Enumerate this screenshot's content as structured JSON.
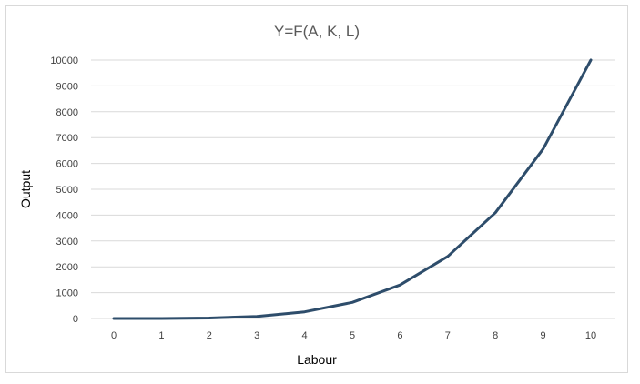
{
  "chart_data": {
    "type": "line",
    "title": "Y=F(A, K, L)",
    "xlabel": "Labour",
    "ylabel": "Output",
    "x": [
      0,
      1,
      2,
      3,
      4,
      5,
      6,
      7,
      8,
      9,
      10
    ],
    "series": [
      {
        "values": [
          0,
          1,
          16,
          81,
          256,
          625,
          1296,
          2401,
          4096,
          6561,
          10000
        ],
        "color": "#2e4d6b"
      }
    ],
    "xticks": [
      "0",
      "1",
      "2",
      "3",
      "4",
      "5",
      "6",
      "7",
      "8",
      "9",
      "10"
    ],
    "yticks": [
      "0",
      "1000",
      "2000",
      "3000",
      "4000",
      "5000",
      "6000",
      "7000",
      "8000",
      "9000",
      "10000"
    ],
    "ylim": [
      0,
      10000
    ],
    "grid": "horizontal",
    "legend": "none",
    "colors": {
      "gridline": "#d9d9d9",
      "line": "#2e4d6b",
      "text": "#404040"
    }
  }
}
